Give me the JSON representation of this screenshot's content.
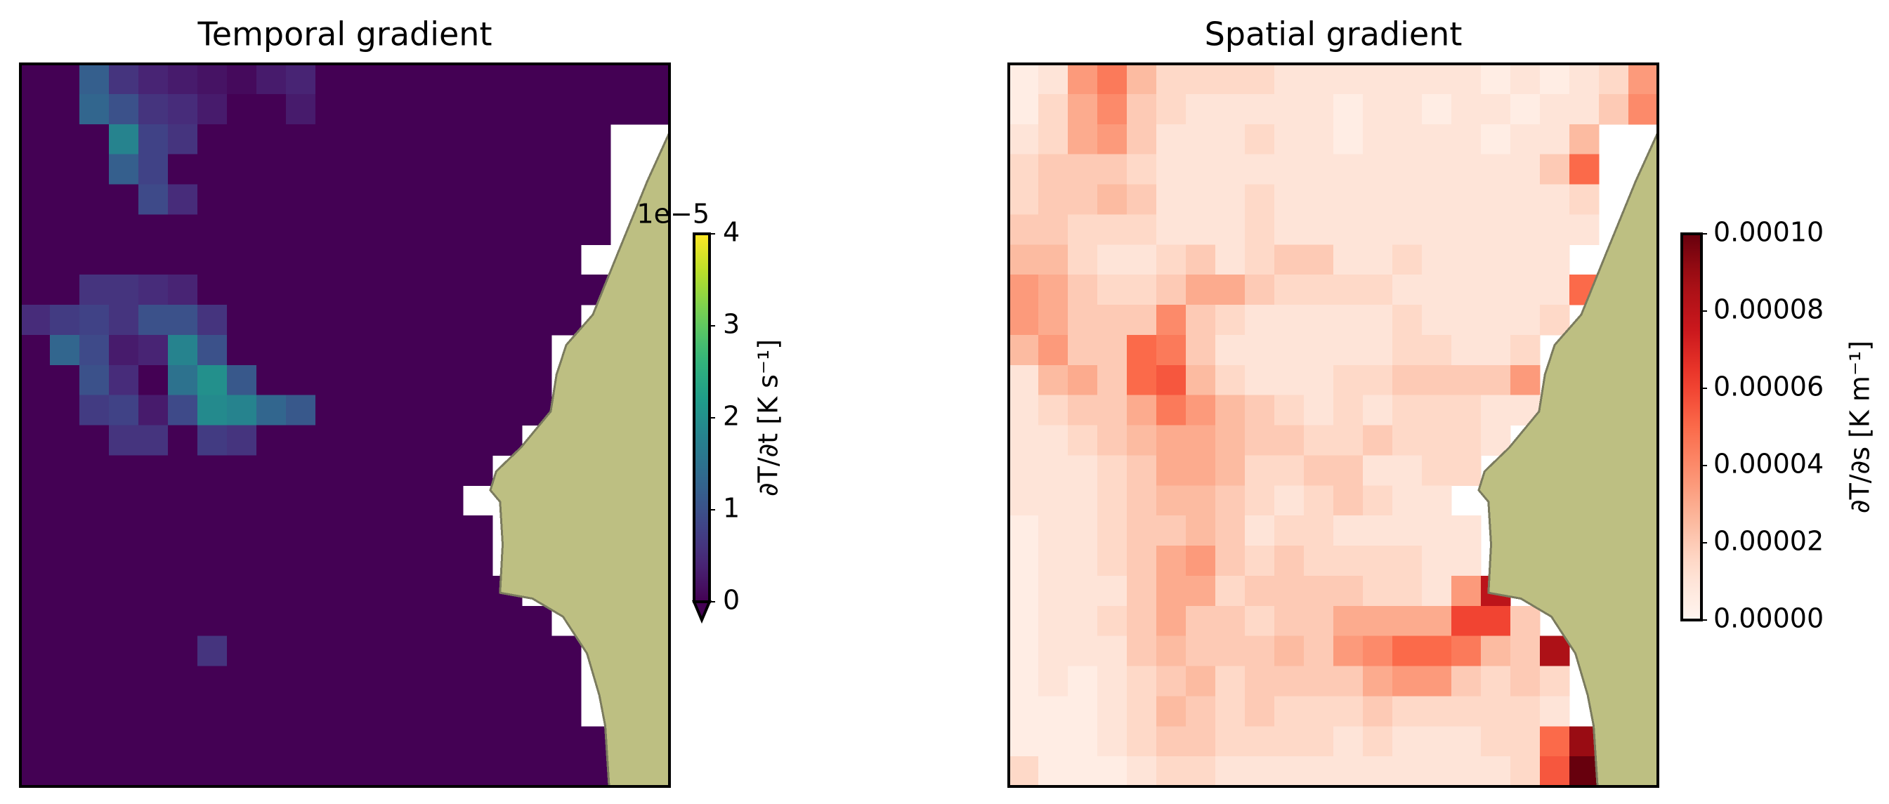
{
  "chart_data": [
    {
      "type": "heatmap",
      "title": "Temporal gradient",
      "colorbar_label": "∂T/∂t [K s⁻¹]",
      "offset_label": "1e−5",
      "colormap": "viridis",
      "extend": "min",
      "zlim": [
        0,
        4
      ],
      "zticks": [
        0,
        1,
        2,
        3,
        4
      ],
      "values": [
        [
          0,
          0,
          1.2,
          0.6,
          0.4,
          0.3,
          0.2,
          0.1,
          0.3,
          0.4,
          0,
          0,
          0,
          0,
          0,
          0,
          0,
          0,
          0,
          0,
          0,
          0
        ],
        [
          0,
          0,
          1.3,
          1,
          0.6,
          0.5,
          0.3,
          0,
          0,
          0.3,
          0,
          0,
          0,
          0,
          0,
          0,
          0,
          0,
          0,
          0,
          0,
          0
        ],
        [
          0,
          0,
          0,
          1.8,
          0.8,
          0.6,
          0,
          0,
          0,
          0,
          0,
          0,
          0,
          0,
          0,
          0,
          0,
          0,
          0,
          0,
          null,
          null
        ],
        [
          0,
          0,
          0,
          1.2,
          0.8,
          0,
          0,
          0,
          0,
          0,
          0,
          0,
          0,
          0,
          0,
          0,
          0,
          0,
          0,
          0,
          null,
          null
        ],
        [
          0,
          0,
          0,
          0,
          0.9,
          0.5,
          0,
          0,
          0,
          0,
          0,
          0,
          0,
          0,
          0,
          0,
          0,
          0,
          0,
          0,
          null,
          null
        ],
        [
          0,
          0,
          0,
          0,
          0,
          0,
          0,
          0,
          0,
          0,
          0,
          0,
          0,
          0,
          0,
          0,
          0,
          0,
          0,
          0,
          null,
          null
        ],
        [
          0,
          0,
          0,
          0,
          0,
          0,
          0,
          0,
          0,
          0,
          0,
          0,
          0,
          0,
          0,
          0,
          0,
          0,
          0,
          null,
          null,
          null
        ],
        [
          0,
          0,
          0.6,
          0.6,
          0.5,
          0.4,
          0,
          0,
          0,
          0,
          0,
          0,
          0,
          0,
          0,
          0,
          0,
          0,
          0,
          0,
          null,
          null
        ],
        [
          0.5,
          0.7,
          0.8,
          0.6,
          1,
          1,
          0.6,
          0,
          0,
          0,
          0,
          0,
          0,
          0,
          0,
          0,
          0,
          0,
          0,
          null,
          null,
          null
        ],
        [
          0,
          1.3,
          0.9,
          0.3,
          0.4,
          1.8,
          1,
          0,
          0,
          0,
          0,
          0,
          0,
          0,
          0,
          0,
          0,
          0,
          null,
          null,
          null,
          null
        ],
        [
          0,
          0,
          1,
          0.5,
          0,
          1.5,
          2,
          1.1,
          0,
          0,
          0,
          0,
          0,
          0,
          0,
          0,
          0,
          0,
          null,
          null,
          null,
          null
        ],
        [
          0,
          0,
          0.7,
          0.8,
          0.3,
          0.9,
          1.9,
          1.8,
          1.3,
          1.1,
          0,
          0,
          0,
          0,
          0,
          0,
          0,
          0,
          null,
          null,
          null,
          null
        ],
        [
          0,
          0,
          0,
          0.6,
          0.6,
          0,
          0.7,
          0.6,
          0,
          0,
          0,
          0,
          0,
          0,
          0,
          0,
          0,
          null,
          null,
          null,
          null,
          null
        ],
        [
          0,
          0,
          0,
          0,
          0,
          0,
          0,
          0,
          0,
          0,
          0,
          0,
          0,
          0,
          0,
          0,
          null,
          null,
          null,
          null,
          null,
          null
        ],
        [
          0,
          0,
          0,
          0,
          0,
          0,
          0,
          0,
          0,
          0,
          0,
          0,
          0,
          0,
          0,
          null,
          null,
          null,
          null,
          null,
          null,
          null
        ],
        [
          0,
          0,
          0,
          0,
          0,
          0,
          0,
          0,
          0,
          0,
          0,
          0,
          0,
          0,
          0,
          0,
          null,
          null,
          null,
          null,
          null,
          null
        ],
        [
          0,
          0,
          0,
          0,
          0,
          0,
          0,
          0,
          0,
          0,
          0,
          0,
          0,
          0,
          0,
          0,
          null,
          null,
          null,
          null,
          null,
          null
        ],
        [
          0,
          0,
          0,
          0,
          0,
          0,
          0,
          0,
          0,
          0,
          0,
          0,
          0,
          0,
          0,
          0,
          0,
          null,
          null,
          null,
          null,
          null
        ],
        [
          0,
          0,
          0,
          0,
          0,
          0,
          0,
          0,
          0,
          0,
          0,
          0,
          0,
          0,
          0,
          0,
          0,
          0,
          null,
          null,
          null,
          null
        ],
        [
          0,
          0,
          0,
          0,
          0,
          0,
          0.6,
          0,
          0,
          0,
          0,
          0,
          0,
          0,
          0,
          0,
          0,
          0,
          0,
          null,
          null,
          null
        ],
        [
          0,
          0,
          0,
          0,
          0,
          0,
          0,
          0,
          0,
          0,
          0,
          0,
          0,
          0,
          0,
          0,
          0,
          0,
          0,
          null,
          null,
          null
        ],
        [
          0,
          0,
          0,
          0,
          0,
          0,
          0,
          0,
          0,
          0,
          0,
          0,
          0,
          0,
          0,
          0,
          0,
          0,
          0,
          null,
          null,
          null
        ],
        [
          0,
          0,
          0,
          0,
          0,
          0,
          0,
          0,
          0,
          0,
          0,
          0,
          0,
          0,
          0,
          0,
          0,
          0,
          0,
          0,
          null,
          null
        ],
        [
          0,
          0,
          0,
          0,
          0,
          0,
          0,
          0,
          0,
          0,
          0,
          0,
          0,
          0,
          0,
          0,
          0,
          0,
          0,
          0,
          null,
          null
        ]
      ]
    },
    {
      "type": "heatmap",
      "title": "Spatial gradient",
      "colorbar_label": "∂T/∂s [K m⁻¹]",
      "colormap": "Reds",
      "zlim": [
        0,
        0.0001
      ],
      "zticks": [
        {
          "value": 0,
          "label": "0.00000"
        },
        {
          "value": 2e-05,
          "label": "0.00002"
        },
        {
          "value": 4e-05,
          "label": "0.00004"
        },
        {
          "value": 6e-05,
          "label": "0.00006"
        },
        {
          "value": 8e-05,
          "label": "0.00008"
        },
        {
          "value": 0.0001,
          "label": "0.00010"
        }
      ],
      "values": [
        [
          5e-06,
          1e-05,
          3.5e-05,
          4.5e-05,
          2.5e-05,
          1.5e-05,
          1.5e-05,
          1.5e-05,
          1.5e-05,
          1e-05,
          1e-05,
          1e-05,
          1e-05,
          1e-05,
          1e-05,
          1e-05,
          5e-06,
          1e-05,
          5e-06,
          1e-05,
          1.5e-05,
          3.5e-05
        ],
        [
          5e-06,
          1.5e-05,
          3e-05,
          4e-05,
          2e-05,
          1.5e-05,
          1e-05,
          1e-05,
          1e-05,
          1e-05,
          1e-05,
          5e-06,
          1e-05,
          1e-05,
          5e-06,
          1e-05,
          1e-05,
          5e-06,
          1e-05,
          1e-05,
          2e-05,
          4e-05
        ],
        [
          1e-05,
          1.5e-05,
          3e-05,
          3.5e-05,
          2e-05,
          1e-05,
          1e-05,
          1e-05,
          1.5e-05,
          1e-05,
          1e-05,
          5e-06,
          1e-05,
          1e-05,
          1e-05,
          1e-05,
          5e-06,
          1e-05,
          1e-05,
          2.5e-05,
          null,
          null
        ],
        [
          1.5e-05,
          2e-05,
          2e-05,
          2e-05,
          1.5e-05,
          1e-05,
          1e-05,
          1e-05,
          1e-05,
          1e-05,
          1e-05,
          1e-05,
          1e-05,
          1e-05,
          1e-05,
          1e-05,
          1e-05,
          1e-05,
          2e-05,
          5e-05,
          null,
          null
        ],
        [
          1.5e-05,
          2e-05,
          2e-05,
          2.5e-05,
          2e-05,
          1e-05,
          1e-05,
          1e-05,
          1.5e-05,
          1e-05,
          1e-05,
          1e-05,
          1e-05,
          1e-05,
          1e-05,
          1e-05,
          1e-05,
          1e-05,
          1e-05,
          1.5e-05,
          null,
          null
        ],
        [
          2e-05,
          2e-05,
          1.5e-05,
          1.5e-05,
          1.5e-05,
          1e-05,
          1e-05,
          1e-05,
          1.5e-05,
          1e-05,
          1e-05,
          1e-05,
          1e-05,
          1e-05,
          1e-05,
          1e-05,
          1e-05,
          1e-05,
          1e-05,
          1e-05,
          null,
          null
        ],
        [
          2.5e-05,
          2.5e-05,
          1.5e-05,
          1e-05,
          1e-05,
          1.5e-05,
          2e-05,
          1e-05,
          1.5e-05,
          2e-05,
          2e-05,
          1e-05,
          1e-05,
          1.5e-05,
          1e-05,
          1e-05,
          1e-05,
          1e-05,
          1e-05,
          null,
          null,
          null
        ],
        [
          3.5e-05,
          3e-05,
          2e-05,
          1.5e-05,
          1.5e-05,
          2e-05,
          3e-05,
          3e-05,
          2e-05,
          1.5e-05,
          1.5e-05,
          1.5e-05,
          1.5e-05,
          1e-05,
          1e-05,
          1e-05,
          1e-05,
          1e-05,
          1e-05,
          5e-05,
          null,
          null
        ],
        [
          3.5e-05,
          3e-05,
          2e-05,
          2e-05,
          2e-05,
          4e-05,
          2e-05,
          1.5e-05,
          1e-05,
          1e-05,
          1e-05,
          1e-05,
          1e-05,
          1.5e-05,
          1e-05,
          1e-05,
          1e-05,
          1e-05,
          1.5e-05,
          null,
          null,
          null
        ],
        [
          2.5e-05,
          3.5e-05,
          2e-05,
          2e-05,
          5e-05,
          4.5e-05,
          2e-05,
          1e-05,
          1e-05,
          1e-05,
          1e-05,
          1e-05,
          1e-05,
          1.5e-05,
          1.5e-05,
          1e-05,
          1e-05,
          1.5e-05,
          null,
          null,
          null,
          null
        ],
        [
          1e-05,
          2.5e-05,
          3e-05,
          2e-05,
          5e-05,
          5.5e-05,
          2.5e-05,
          1.5e-05,
          1e-05,
          1e-05,
          1e-05,
          1.5e-05,
          1.5e-05,
          2e-05,
          2e-05,
          2e-05,
          2e-05,
          3.5e-05,
          null,
          null,
          null,
          null
        ],
        [
          1e-05,
          1.5e-05,
          2e-05,
          2e-05,
          3e-05,
          4.5e-05,
          3.5e-05,
          2.5e-05,
          2e-05,
          1.5e-05,
          1e-05,
          1.5e-05,
          1e-05,
          1.5e-05,
          1.5e-05,
          1.5e-05,
          1e-05,
          1e-05,
          null,
          null,
          null,
          null
        ],
        [
          1e-05,
          1e-05,
          1.5e-05,
          2e-05,
          2.5e-05,
          3e-05,
          3e-05,
          2.5e-05,
          2e-05,
          2e-05,
          1.5e-05,
          1.5e-05,
          2e-05,
          1.5e-05,
          1.5e-05,
          1.5e-05,
          1e-05,
          null,
          null,
          null,
          null,
          null
        ],
        [
          1e-05,
          1e-05,
          1e-05,
          1.5e-05,
          2e-05,
          3e-05,
          3e-05,
          2.5e-05,
          1.5e-05,
          1.5e-05,
          2e-05,
          2e-05,
          1e-05,
          1e-05,
          1.5e-05,
          1.5e-05,
          null,
          null,
          null,
          null,
          null,
          null
        ],
        [
          1e-05,
          1e-05,
          1e-05,
          1.5e-05,
          2e-05,
          2.5e-05,
          2.5e-05,
          2e-05,
          1.5e-05,
          1e-05,
          1.5e-05,
          2e-05,
          1.5e-05,
          1e-05,
          1e-05,
          null,
          null,
          null,
          null,
          null,
          null,
          null
        ],
        [
          5e-06,
          1e-05,
          1e-05,
          1.5e-05,
          2e-05,
          2e-05,
          2.5e-05,
          2e-05,
          1e-05,
          1.5e-05,
          1.5e-05,
          1e-05,
          1e-05,
          1e-05,
          1e-05,
          1e-05,
          null,
          null,
          null,
          null,
          null,
          null
        ],
        [
          5e-06,
          1e-05,
          1e-05,
          1.5e-05,
          2e-05,
          3e-05,
          3.5e-05,
          2e-05,
          1.5e-05,
          2e-05,
          1.5e-05,
          1.5e-05,
          1.5e-05,
          1.5e-05,
          1e-05,
          1e-05,
          null,
          null,
          null,
          null,
          null,
          null
        ],
        [
          5e-06,
          1e-05,
          1e-05,
          1e-05,
          2e-05,
          3e-05,
          3e-05,
          1.5e-05,
          2e-05,
          2e-05,
          2e-05,
          2e-05,
          1.5e-05,
          1.5e-05,
          1e-05,
          3.5e-05,
          8e-05,
          null,
          null,
          null,
          null,
          null
        ],
        [
          5e-06,
          1e-05,
          1e-05,
          1.5e-05,
          2e-05,
          3e-05,
          2e-05,
          2e-05,
          1.5e-05,
          2e-05,
          2e-05,
          3e-05,
          3e-05,
          3e-05,
          3e-05,
          6e-05,
          6e-05,
          2e-05,
          null,
          null,
          null,
          null
        ],
        [
          5e-06,
          1e-05,
          1e-05,
          1e-05,
          2e-05,
          2.5e-05,
          2e-05,
          2e-05,
          2e-05,
          2.5e-05,
          2e-05,
          3.5e-05,
          4e-05,
          5e-05,
          5e-05,
          4.5e-05,
          2.5e-05,
          2e-05,
          8.5e-05,
          null,
          null,
          null
        ],
        [
          5e-06,
          1e-05,
          5e-06,
          1e-05,
          1.5e-05,
          2e-05,
          2.5e-05,
          1.5e-05,
          2e-05,
          2e-05,
          2e-05,
          2e-05,
          3e-05,
          3.5e-05,
          3.5e-05,
          2e-05,
          1.5e-05,
          2e-05,
          1.5e-05,
          null,
          null,
          null
        ],
        [
          5e-06,
          5e-06,
          5e-06,
          1e-05,
          1.5e-05,
          2.5e-05,
          2e-05,
          1.5e-05,
          2e-05,
          1.5e-05,
          1.5e-05,
          1.5e-05,
          2e-05,
          1.5e-05,
          1.5e-05,
          1.5e-05,
          1.5e-05,
          1.5e-05,
          1e-05,
          null,
          null,
          null
        ],
        [
          5e-06,
          5e-06,
          5e-06,
          1e-05,
          1.5e-05,
          2e-05,
          2e-05,
          1.5e-05,
          1.5e-05,
          1.5e-05,
          1.5e-05,
          1e-05,
          1.5e-05,
          1e-05,
          1e-05,
          1e-05,
          1.5e-05,
          1.5e-05,
          5e-05,
          9e-05,
          null,
          null
        ],
        [
          1.5e-05,
          5e-06,
          5e-06,
          5e-06,
          1e-05,
          1.5e-05,
          1.5e-05,
          1e-05,
          1e-05,
          1e-05,
          1e-05,
          1e-05,
          1e-05,
          1e-05,
          1e-05,
          1e-05,
          1e-05,
          1.5e-05,
          5.5e-05,
          0.0001,
          null,
          null
        ]
      ]
    }
  ]
}
